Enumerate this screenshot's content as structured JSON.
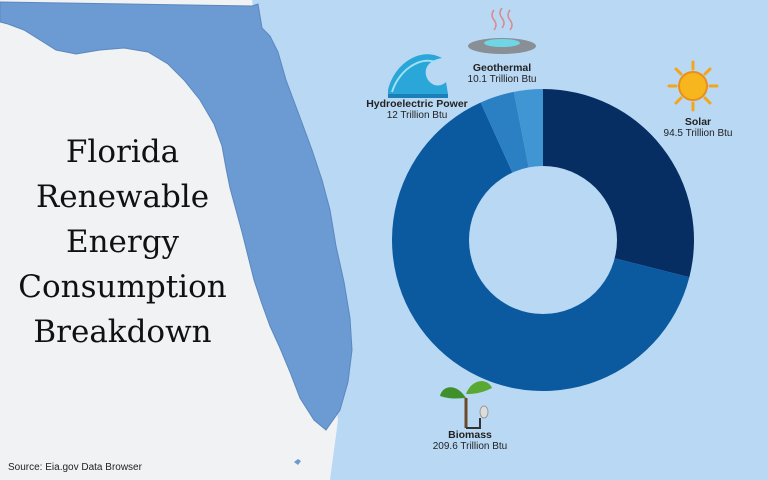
{
  "title_lines": [
    "Florida",
    "Renewable",
    "Energy",
    "Consumption",
    "Breakdown"
  ],
  "source": "Source: Eia.gov Data Browser",
  "colors": {
    "ocean": "#b9d8f4",
    "land": "#f1f2f3",
    "florida": "#6b9bd2",
    "donut_hole": "#b9d8f4"
  },
  "chart_data": {
    "type": "pie",
    "donut": true,
    "title": "Florida Renewable Energy Consumption Breakdown",
    "unit": "Trillion Btu",
    "slices": [
      {
        "name": "Solar",
        "value": 94.5,
        "value_label": "94.5 Trillion Btu",
        "color": "#062e62",
        "icon": "sun-icon"
      },
      {
        "name": "Biomass",
        "value": 209.6,
        "value_label": "209.6 Trillion Btu",
        "color": "#0b5aa0",
        "icon": "plant-icon"
      },
      {
        "name": "Hydroelectric Power",
        "value": 12,
        "value_label": "12 Trillion Btu",
        "color": "#2a80c2",
        "icon": "wave-icon"
      },
      {
        "name": "Geothermal",
        "value": 10.1,
        "value_label": "10.1 Trillion Btu",
        "color": "#3f96d2",
        "icon": "geothermal-icon"
      }
    ]
  }
}
